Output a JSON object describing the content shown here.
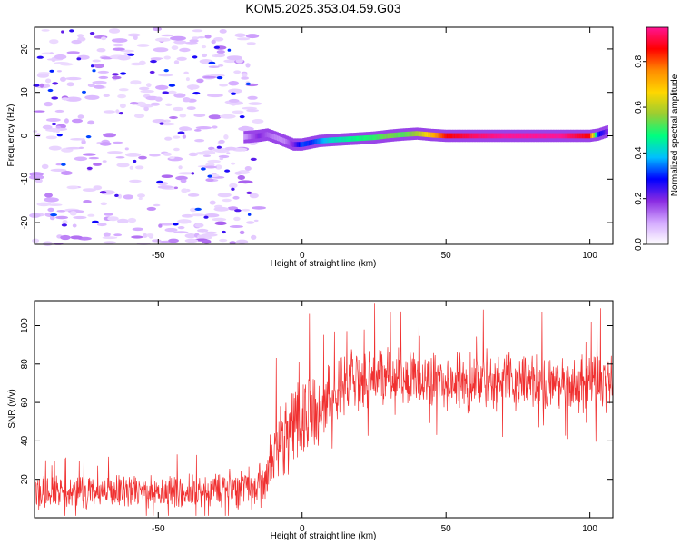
{
  "title": "KOM5.2025.353.04.59.G03",
  "chart_data": [
    {
      "type": "heatmap",
      "xlabel": "Height of straight line (km)",
      "ylabel": "Frequency (Hz)",
      "xlim": [
        -93,
        108
      ],
      "ylim": [
        -25,
        25
      ],
      "xticks": [
        -50,
        0,
        50,
        100
      ],
      "xtick_labels": [
        "-50",
        "0",
        "50",
        "100"
      ],
      "yticks": [
        -20,
        -10,
        0,
        10,
        20
      ],
      "ytick_labels": [
        "-20",
        "-10",
        "0",
        "10",
        "20"
      ],
      "ridge": {
        "x": [
          -20,
          -15,
          -12,
          -9,
          -6,
          -3,
          0,
          3,
          6,
          10,
          15,
          20,
          25,
          30,
          35,
          40,
          45,
          50,
          60,
          70,
          80,
          90,
          100,
          103,
          106
        ],
        "freq": [
          -0.3,
          0.0,
          0.3,
          -0.4,
          -1.2,
          -2.0,
          -2.0,
          -1.6,
          -1.2,
          -1.0,
          -0.8,
          -0.6,
          -0.4,
          0.0,
          0.3,
          0.5,
          0.2,
          0.0,
          0.0,
          0.0,
          0.0,
          0.0,
          0.0,
          0.3,
          1.0
        ],
        "amplitude": [
          0.1,
          0.2,
          0.15,
          0.12,
          0.12,
          0.2,
          0.32,
          0.3,
          0.35,
          0.42,
          0.45,
          0.48,
          0.5,
          0.55,
          0.52,
          0.58,
          0.7,
          0.85,
          0.92,
          0.95,
          0.95,
          0.95,
          0.85,
          0.3,
          0.2
        ]
      },
      "colorbar": {
        "label": "Normalized spectral amplitude",
        "range": [
          0.0,
          0.95
        ],
        "ticks": [
          0.0,
          0.2,
          0.4,
          0.6,
          0.8
        ],
        "tick_labels": [
          "0.0",
          "0.2",
          "0.4",
          "0.6",
          "0.8"
        ],
        "colors": [
          "#ffffff",
          "#d4aaff",
          "#8a2be2",
          "#0000ff",
          "#00bfff",
          "#00ff7f",
          "#9acd32",
          "#ffd700",
          "#ff8c00",
          "#ff0000",
          "#ff1493"
        ]
      }
    },
    {
      "type": "line",
      "xlabel": "Height of straight line (km)",
      "ylabel": "SNR (v/v)",
      "xlim": [
        -93,
        108
      ],
      "ylim": [
        0,
        113
      ],
      "xticks": [
        -50,
        0,
        50,
        100
      ],
      "xtick_labels": [
        "-50",
        "0",
        "50",
        "100"
      ],
      "yticks": [
        20,
        40,
        60,
        80,
        100
      ],
      "ytick_labels": [
        "20",
        "40",
        "60",
        "80",
        "100"
      ],
      "color": "#f03030",
      "envelope": {
        "x": [
          -93,
          -50,
          -20,
          -13,
          -10,
          -5,
          0,
          5,
          10,
          15,
          20,
          30,
          40,
          50,
          60,
          70,
          80,
          90,
          100,
          108
        ],
        "mean": [
          13,
          13,
          16,
          18,
          35,
          45,
          52,
          58,
          63,
          68,
          72,
          74,
          72,
          70,
          71,
          72,
          70,
          69,
          70,
          70
        ],
        "spread": [
          10,
          10,
          12,
          14,
          22,
          24,
          24,
          24,
          22,
          20,
          18,
          18,
          18,
          17,
          18,
          18,
          17,
          17,
          18,
          18
        ]
      }
    }
  ]
}
